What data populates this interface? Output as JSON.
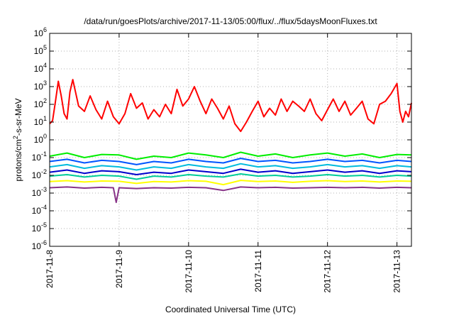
{
  "chart_data": {
    "type": "line",
    "title": "/data/run/goesPlots/archive/2017-11-13/05:00/flux/../flux/5daysMoonFluxes.txt",
    "xlabel": "Coordinated Universal Time (UTC)",
    "ylabel": {
      "base": "protons/cm",
      "sup": "2",
      "rest": "-s-sr-MeV"
    },
    "yscale": "log",
    "ylim": [
      1e-06,
      1000000.0
    ],
    "y_ticks": [
      {
        "value": 1e-06,
        "base": "10",
        "exp": "-6"
      },
      {
        "value": 1e-05,
        "base": "10",
        "exp": "-5"
      },
      {
        "value": 0.0001,
        "base": "10",
        "exp": "-4"
      },
      {
        "value": 0.001,
        "base": "10",
        "exp": "-3"
      },
      {
        "value": 0.01,
        "base": "10",
        "exp": "-2"
      },
      {
        "value": 0.1,
        "base": "10",
        "exp": "-1"
      },
      {
        "value": 1,
        "base": "10",
        "exp": "0"
      },
      {
        "value": 10,
        "base": "10",
        "exp": "1"
      },
      {
        "value": 100,
        "base": "10",
        "exp": "2"
      },
      {
        "value": 1000,
        "base": "10",
        "exp": "3"
      },
      {
        "value": 10000,
        "base": "10",
        "exp": "4"
      },
      {
        "value": 100000,
        "base": "10",
        "exp": "5"
      },
      {
        "value": 1000000,
        "base": "10",
        "exp": "6"
      }
    ],
    "xlim": [
      "2017-11-08 00:00",
      "2017-11-13 05:00"
    ],
    "x_ticks": [
      "2017-11-8",
      "2017-11-9",
      "2017-11-10",
      "2017-11-11",
      "2017-11-12",
      "2017-11-13"
    ],
    "grid": true,
    "series": [
      {
        "color": "#ff0000",
        "x": [
          "2017-11-08 00:00",
          "2017-11-08 01:00",
          "2017-11-08 02:00",
          "2017-11-08 03:00",
          "2017-11-08 04:00",
          "2017-11-08 05:00",
          "2017-11-08 06:00",
          "2017-11-08 07:00",
          "2017-11-08 08:00",
          "2017-11-08 10:00",
          "2017-11-08 12:00",
          "2017-11-08 14:00",
          "2017-11-08 16:00",
          "2017-11-08 18:00",
          "2017-11-08 20:00",
          "2017-11-08 22:00",
          "2017-11-09 00:00",
          "2017-11-09 02:00",
          "2017-11-09 04:00",
          "2017-11-09 06:00",
          "2017-11-09 08:00",
          "2017-11-09 10:00",
          "2017-11-09 12:00",
          "2017-11-09 14:00",
          "2017-11-09 16:00",
          "2017-11-09 18:00",
          "2017-11-09 20:00",
          "2017-11-09 22:00",
          "2017-11-10 00:00",
          "2017-11-10 02:00",
          "2017-11-10 04:00",
          "2017-11-10 06:00",
          "2017-11-10 08:00",
          "2017-11-10 10:00",
          "2017-11-10 12:00",
          "2017-11-10 14:00",
          "2017-11-10 16:00",
          "2017-11-10 18:00",
          "2017-11-10 20:00",
          "2017-11-10 22:00",
          "2017-11-11 00:00",
          "2017-11-11 02:00",
          "2017-11-11 04:00",
          "2017-11-11 06:00",
          "2017-11-11 08:00",
          "2017-11-11 10:00",
          "2017-11-11 12:00",
          "2017-11-11 14:00",
          "2017-11-11 16:00",
          "2017-11-11 18:00",
          "2017-11-11 20:00",
          "2017-11-11 22:00",
          "2017-11-12 00:00",
          "2017-11-12 02:00",
          "2017-11-12 04:00",
          "2017-11-12 06:00",
          "2017-11-12 08:00",
          "2017-11-12 10:00",
          "2017-11-12 12:00",
          "2017-11-12 14:00",
          "2017-11-12 16:00",
          "2017-11-12 18:00",
          "2017-11-12 20:00",
          "2017-11-12 22:00",
          "2017-11-13 00:00",
          "2017-11-13 01:00",
          "2017-11-13 02:00",
          "2017-11-13 03:00",
          "2017-11-13 04:00",
          "2017-11-13 05:00"
        ],
        "values": [
          8,
          12,
          150,
          2000,
          300,
          30,
          15,
          500,
          2500,
          80,
          40,
          300,
          50,
          15,
          150,
          20,
          8,
          30,
          400,
          60,
          120,
          15,
          50,
          20,
          100,
          30,
          700,
          80,
          200,
          1000,
          150,
          30,
          200,
          60,
          15,
          80,
          8,
          3,
          10,
          40,
          150,
          20,
          60,
          25,
          200,
          40,
          150,
          80,
          40,
          200,
          30,
          12,
          50,
          200,
          40,
          150,
          25,
          60,
          150,
          15,
          8,
          100,
          150,
          400,
          1500,
          40,
          10,
          40,
          20,
          120
        ]
      },
      {
        "color": "#00ee00",
        "x": [
          "2017-11-08 00:00",
          "2017-11-08 06:00",
          "2017-11-08 12:00",
          "2017-11-08 18:00",
          "2017-11-09 00:00",
          "2017-11-09 06:00",
          "2017-11-09 12:00",
          "2017-11-09 18:00",
          "2017-11-10 00:00",
          "2017-11-10 06:00",
          "2017-11-10 12:00",
          "2017-11-10 18:00",
          "2017-11-11 00:00",
          "2017-11-11 06:00",
          "2017-11-11 12:00",
          "2017-11-11 18:00",
          "2017-11-12 00:00",
          "2017-11-12 06:00",
          "2017-11-12 12:00",
          "2017-11-12 18:00",
          "2017-11-13 00:00",
          "2017-11-13 05:00"
        ],
        "values": [
          0.12,
          0.18,
          0.1,
          0.15,
          0.14,
          0.08,
          0.12,
          0.1,
          0.18,
          0.14,
          0.1,
          0.2,
          0.12,
          0.16,
          0.1,
          0.14,
          0.18,
          0.12,
          0.16,
          0.1,
          0.15,
          0.14
        ]
      },
      {
        "color": "#0055ff",
        "x": [
          "2017-11-08 00:00",
          "2017-11-08 06:00",
          "2017-11-08 12:00",
          "2017-11-08 18:00",
          "2017-11-09 00:00",
          "2017-11-09 06:00",
          "2017-11-09 12:00",
          "2017-11-09 18:00",
          "2017-11-10 00:00",
          "2017-11-10 06:00",
          "2017-11-10 12:00",
          "2017-11-10 18:00",
          "2017-11-11 00:00",
          "2017-11-11 06:00",
          "2017-11-11 12:00",
          "2017-11-11 18:00",
          "2017-11-12 00:00",
          "2017-11-12 06:00",
          "2017-11-12 12:00",
          "2017-11-12 18:00",
          "2017-11-13 00:00",
          "2017-11-13 05:00"
        ],
        "values": [
          0.06,
          0.08,
          0.05,
          0.07,
          0.06,
          0.04,
          0.06,
          0.05,
          0.08,
          0.06,
          0.05,
          0.09,
          0.06,
          0.07,
          0.05,
          0.06,
          0.08,
          0.06,
          0.07,
          0.05,
          0.07,
          0.06
        ]
      },
      {
        "color": "#00bbdd",
        "x": [
          "2017-11-08 00:00",
          "2017-11-08 06:00",
          "2017-11-08 12:00",
          "2017-11-08 18:00",
          "2017-11-09 00:00",
          "2017-11-09 06:00",
          "2017-11-09 12:00",
          "2017-11-09 18:00",
          "2017-11-10 00:00",
          "2017-11-10 06:00",
          "2017-11-10 12:00",
          "2017-11-10 18:00",
          "2017-11-11 00:00",
          "2017-11-11 06:00",
          "2017-11-11 12:00",
          "2017-11-11 18:00",
          "2017-11-12 00:00",
          "2017-11-12 06:00",
          "2017-11-12 12:00",
          "2017-11-12 18:00",
          "2017-11-13 00:00",
          "2017-11-13 05:00"
        ],
        "values": [
          0.03,
          0.04,
          0.025,
          0.035,
          0.03,
          0.02,
          0.03,
          0.025,
          0.04,
          0.03,
          0.025,
          0.045,
          0.03,
          0.035,
          0.025,
          0.03,
          0.04,
          0.03,
          0.035,
          0.025,
          0.035,
          0.03
        ]
      },
      {
        "color": "#0000cc",
        "x": [
          "2017-11-08 00:00",
          "2017-11-08 06:00",
          "2017-11-08 12:00",
          "2017-11-08 18:00",
          "2017-11-09 00:00",
          "2017-11-09 06:00",
          "2017-11-09 12:00",
          "2017-11-09 18:00",
          "2017-11-10 00:00",
          "2017-11-10 06:00",
          "2017-11-10 12:00",
          "2017-11-10 18:00",
          "2017-11-11 00:00",
          "2017-11-11 06:00",
          "2017-11-11 12:00",
          "2017-11-11 18:00",
          "2017-11-12 00:00",
          "2017-11-12 06:00",
          "2017-11-12 12:00",
          "2017-11-12 18:00",
          "2017-11-13 00:00",
          "2017-11-13 05:00"
        ],
        "values": [
          0.015,
          0.02,
          0.013,
          0.018,
          0.016,
          0.011,
          0.015,
          0.013,
          0.02,
          0.016,
          0.013,
          0.022,
          0.015,
          0.018,
          0.013,
          0.016,
          0.02,
          0.015,
          0.018,
          0.013,
          0.018,
          0.016
        ]
      },
      {
        "color": "#00cc99",
        "x": [
          "2017-11-08 00:00",
          "2017-11-08 06:00",
          "2017-11-08 12:00",
          "2017-11-08 18:00",
          "2017-11-09 00:00",
          "2017-11-09 06:00",
          "2017-11-09 12:00",
          "2017-11-09 18:00",
          "2017-11-10 00:00",
          "2017-11-10 06:00",
          "2017-11-10 12:00",
          "2017-11-10 18:00",
          "2017-11-11 00:00",
          "2017-11-11 06:00",
          "2017-11-11 12:00",
          "2017-11-11 18:00",
          "2017-11-12 00:00",
          "2017-11-12 06:00",
          "2017-11-12 12:00",
          "2017-11-12 18:00",
          "2017-11-13 00:00",
          "2017-11-13 05:00"
        ],
        "values": [
          0.009,
          0.011,
          0.008,
          0.01,
          0.009,
          0.006,
          0.009,
          0.008,
          0.011,
          0.009,
          0.008,
          0.012,
          0.009,
          0.01,
          0.008,
          0.009,
          0.011,
          0.009,
          0.01,
          0.008,
          0.01,
          0.009
        ]
      },
      {
        "color": "#ffff00",
        "x": [
          "2017-11-08 00:00",
          "2017-11-08 06:00",
          "2017-11-08 12:00",
          "2017-11-08 18:00",
          "2017-11-09 00:00",
          "2017-11-09 06:00",
          "2017-11-09 12:00",
          "2017-11-09 18:00",
          "2017-11-10 00:00",
          "2017-11-10 06:00",
          "2017-11-10 12:00",
          "2017-11-10 18:00",
          "2017-11-11 00:00",
          "2017-11-11 06:00",
          "2017-11-11 12:00",
          "2017-11-11 18:00",
          "2017-11-12 00:00",
          "2017-11-12 06:00",
          "2017-11-12 12:00",
          "2017-11-12 18:00",
          "2017-11-13 00:00",
          "2017-11-13 05:00"
        ],
        "values": [
          0.0045,
          0.005,
          0.0042,
          0.0048,
          0.0046,
          0.0035,
          0.0045,
          0.0042,
          0.005,
          0.0046,
          0.003,
          0.0052,
          0.0045,
          0.0048,
          0.004,
          0.0046,
          0.005,
          0.0045,
          0.0048,
          0.0042,
          0.0048,
          0.0046
        ]
      },
      {
        "color": "#883388",
        "x": [
          "2017-11-08 00:00",
          "2017-11-08 06:00",
          "2017-11-08 12:00",
          "2017-11-08 18:00",
          "2017-11-08 22:00",
          "2017-11-08 23:00",
          "2017-11-09 00:00",
          "2017-11-09 06:00",
          "2017-11-09 12:00",
          "2017-11-09 18:00",
          "2017-11-10 00:00",
          "2017-11-10 06:00",
          "2017-11-10 12:00",
          "2017-11-10 18:00",
          "2017-11-11 00:00",
          "2017-11-11 06:00",
          "2017-11-11 12:00",
          "2017-11-11 18:00",
          "2017-11-12 00:00",
          "2017-11-12 06:00",
          "2017-11-12 12:00",
          "2017-11-12 18:00",
          "2017-11-13 00:00",
          "2017-11-13 05:00"
        ],
        "values": [
          0.002,
          0.0022,
          0.0019,
          0.0021,
          0.002,
          0.0003,
          0.002,
          0.0018,
          0.002,
          0.0019,
          0.0021,
          0.002,
          0.0014,
          0.0022,
          0.002,
          0.0021,
          0.0019,
          0.002,
          0.0021,
          0.002,
          0.0021,
          0.0019,
          0.0021,
          0.002
        ]
      }
    ]
  }
}
